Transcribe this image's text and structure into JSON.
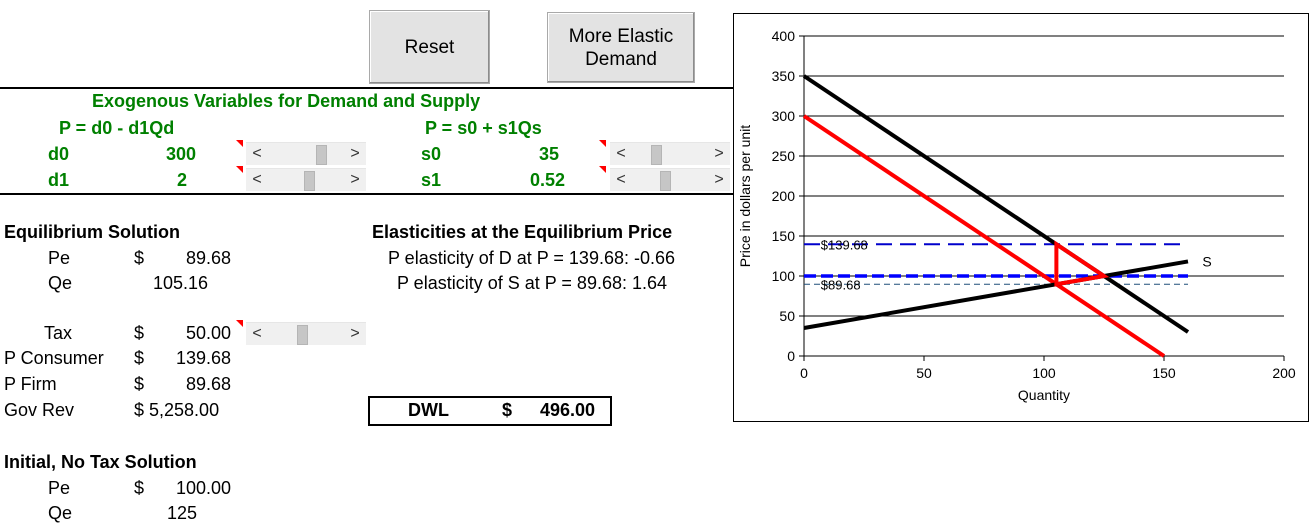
{
  "buttons": {
    "reset": "Reset",
    "elastic": "More Elastic\nDemand"
  },
  "exo": {
    "title": "Exogenous Variables for Demand and Supply",
    "demand_eq": "P = d0 - d1Qd",
    "supply_eq": "P = s0 + s1Qs",
    "d0_label": "d0",
    "d0_value": "300",
    "d1_label": "d1",
    "d1_value": "2",
    "s0_label": "s0",
    "s0_value": "35",
    "s1_label": "s1",
    "s1_value": "0.52"
  },
  "scrollbars": {
    "left_arrow": "<",
    "right_arrow": ">",
    "d0_position": 0.75,
    "d1_position": 0.55,
    "s0_position": 0.28,
    "s1_position": 0.42,
    "tax_position": 0.45
  },
  "eq": {
    "title": "Equilibrium Solution",
    "pe_label": "Pe",
    "pe_cur": "$",
    "pe_value": "89.68",
    "qe_label": "Qe",
    "qe_value": "105.16"
  },
  "tax": {
    "tax_label": "Tax",
    "tax_cur": "$",
    "tax_value": "50.00",
    "pc_label": "P Consumer",
    "pc_cur": "$",
    "pc_value": "139.68",
    "pf_label": "P Firm",
    "pf_cur": "$",
    "pf_value": "89.68",
    "gr_label": "Gov Rev",
    "gr_value": "$ 5,258.00"
  },
  "elast": {
    "title": "Elasticities at the Equilibrium Price",
    "d": "P elasticity of D at P = 139.68: -0.66",
    "s": "P elasticity of S at P = 89.68: 1.64"
  },
  "dwl": {
    "label": "DWL",
    "cur": "$",
    "value": "496.00"
  },
  "initial": {
    "title": "Initial, No Tax Solution",
    "pe_label": "Pe",
    "pe_cur": "$",
    "pe_value": "100.00",
    "qe_label": "Qe",
    "qe_value": "125"
  },
  "chart_data": {
    "type": "line",
    "xlabel": "Quantity",
    "ylabel": "Price in dollars per unit",
    "xlim": [
      0,
      200
    ],
    "ylim": [
      0,
      400
    ],
    "xticks": [
      "0",
      "50",
      "100",
      "150",
      "200"
    ],
    "yticks": [
      "0",
      "50",
      "100",
      "150",
      "200",
      "250",
      "300",
      "350",
      "400"
    ],
    "grid": "horizontal",
    "series": [
      {
        "name": "",
        "color": "#000000",
        "x": [
          0,
          160
        ],
        "y": [
          350,
          30
        ]
      },
      {
        "name": "",
        "color": "#ff0000",
        "x": [
          0,
          150
        ],
        "y": [
          300,
          0
        ]
      },
      {
        "name": "S",
        "color": "#000000",
        "x": [
          0,
          160
        ],
        "y": [
          35,
          118.2
        ]
      }
    ],
    "dwl_triangle": {
      "color": "#ff0000",
      "x": [
        105.16,
        105.16,
        125
      ],
      "y": [
        139.68,
        89.68,
        100
      ]
    },
    "hlines": [
      {
        "label": "$139.68",
        "y": 139.68,
        "color": "#0000cc",
        "style": "dashed"
      },
      {
        "label": "",
        "y": 100,
        "color": "#0000ff",
        "style": "dashed-thick"
      },
      {
        "label": "$89.68",
        "y": 89.68,
        "color": "#1f4e79",
        "style": "dashed-thin"
      }
    ],
    "supply_label": "S"
  }
}
